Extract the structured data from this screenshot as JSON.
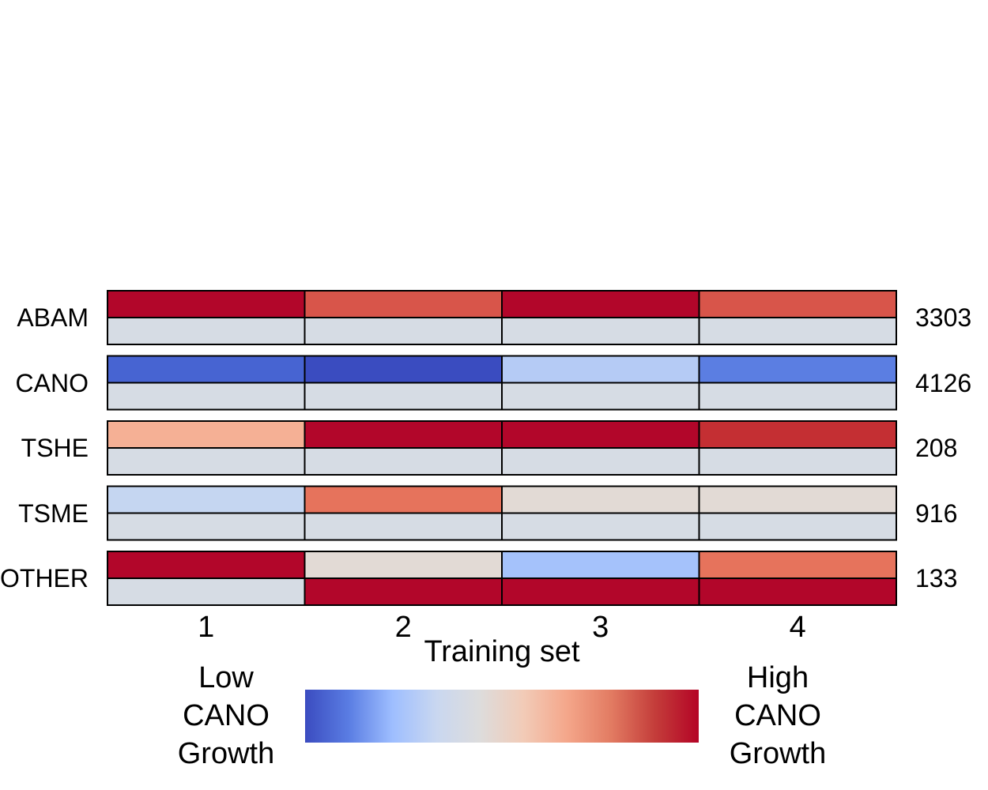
{
  "chart_data": {
    "type": "heatmap",
    "xlabel": "Training set",
    "x_ticks": [
      "1",
      "2",
      "3",
      "4"
    ],
    "groups": [
      {
        "label": "ABAM",
        "count": "3303",
        "top": [
          "#b2062a",
          "#d8554a",
          "#b2062a",
          "#d8554a"
        ],
        "bottom": [
          "#d6dce4",
          "#d6dce4",
          "#d6dce4",
          "#d6dce4"
        ]
      },
      {
        "label": "CANO",
        "count": "4126",
        "top": [
          "#4764d2",
          "#3a4cc0",
          "#b5cbf5",
          "#5b7ee2"
        ],
        "bottom": [
          "#d6dce4",
          "#d6dce4",
          "#d6dce4",
          "#d6dce4"
        ]
      },
      {
        "label": "TSHE",
        "count": "208",
        "top": [
          "#f5b095",
          "#b2062a",
          "#b2062a",
          "#c42f33"
        ],
        "bottom": [
          "#d6dce4",
          "#d6dce4",
          "#d6dce4",
          "#d6dce4"
        ]
      },
      {
        "label": "TSME",
        "count": "916",
        "top": [
          "#c5d6f1",
          "#e6735c",
          "#e2dad5",
          "#e2dad5"
        ],
        "bottom": [
          "#d6dce4",
          "#d6dce4",
          "#d6dce4",
          "#d6dce4"
        ]
      },
      {
        "label": "OTHER",
        "count": "133",
        "top": [
          "#b2062a",
          "#e2dad5",
          "#a5c2fb",
          "#e6735c"
        ],
        "bottom": [
          "#d6dce4",
          "#b2062a",
          "#b2062a",
          "#b2062a"
        ]
      }
    ],
    "colorbar": {
      "low_label": [
        "Low",
        "CANO",
        "Growth"
      ],
      "high_label": [
        "High",
        "CANO",
        "Growth"
      ],
      "colors": [
        "#3b4cc0",
        "#5a7de3",
        "#9ebeff",
        "#c9d7f0",
        "#dddcdc",
        "#f2cbb7",
        "#f4a68a",
        "#e27b62",
        "#c43d3a",
        "#b40426"
      ]
    }
  }
}
